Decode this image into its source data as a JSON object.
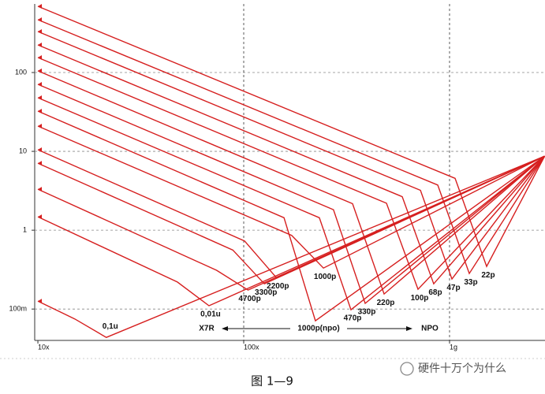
{
  "chart_data": {
    "type": "line",
    "log_x": true,
    "log_y": true,
    "grid": true,
    "color": "#d61f1f",
    "xlim": [
      9.65,
      2909
    ],
    "ylim": [
      0.04,
      741
    ],
    "xticks": [
      {
        "value": 10,
        "label": "10x"
      },
      {
        "value": 100,
        "label": "100x"
      },
      {
        "value": 1000,
        "label": "1g"
      }
    ],
    "yticks": [
      100,
      10,
      1,
      {
        "value": 0.1,
        "label": "100m"
      }
    ],
    "series": [
      {
        "name": "22p",
        "x": [
          10,
          1064,
          1514,
          2900
        ],
        "values": [
          692,
          4.55,
          0.347,
          8.7
        ]
      },
      {
        "name": "33p",
        "x": [
          10,
          876,
          1247,
          2900
        ],
        "values": [
          468,
          3.74,
          0.282,
          8.7
        ]
      },
      {
        "name": "47p",
        "x": [
          10,
          722,
          1027,
          2900
        ],
        "values": [
          331,
          3.21,
          0.24,
          8.7
        ]
      },
      {
        "name": "68p",
        "x": [
          10,
          589,
          838,
          2900
        ],
        "values": [
          224,
          2.66,
          0.209,
          8.7
        ]
      },
      {
        "name": "100p",
        "x": [
          10,
          494,
          703,
          2900
        ],
        "values": [
          155,
          2.2,
          0.178,
          8.7
        ]
      },
      {
        "name": "220p",
        "x": [
          10,
          338,
          481,
          2900
        ],
        "values": [
          105,
          2.17,
          0.155,
          8.7
        ]
      },
      {
        "name": "330p",
        "x": [
          10,
          273,
          389,
          2900
        ],
        "values": [
          70.8,
          1.82,
          0.118,
          8.7
        ]
      },
      {
        "name": "470p",
        "x": [
          10,
          233,
          332,
          2900
        ],
        "values": [
          47.9,
          1.44,
          0.098,
          8.7
        ]
      },
      {
        "name": "1000p(npo)",
        "x": [
          10,
          157,
          223,
          2900
        ],
        "values": [
          32.4,
          1.44,
          0.071,
          8.7
        ]
      },
      {
        "name": "1000p",
        "x": [
          10,
          171,
          244,
          2900
        ],
        "values": [
          20.9,
          0.86,
          0.331,
          8.7
        ]
      },
      {
        "name": "2200p",
        "x": [
          10,
          101,
          144,
          2900
        ],
        "values": [
          10.5,
          0.73,
          0.251,
          8.7
        ]
      },
      {
        "name": "3300p",
        "x": [
          10,
          88.5,
          126,
          2900
        ],
        "values": [
          7.08,
          0.56,
          0.209,
          8.7
        ]
      },
      {
        "name": "4700p",
        "x": [
          10,
          73.8,
          105,
          2900
        ],
        "values": [
          3.31,
          0.31,
          0.174,
          8.7
        ]
      },
      {
        "name": "0,01u",
        "x": [
          10,
          47.6,
          67.8,
          2900
        ],
        "values": [
          1.48,
          0.22,
          0.11,
          8.7
        ]
      },
      {
        "name": "0,1u",
        "x": [
          10,
          15.1,
          21.5,
          2900
        ],
        "values": [
          0.126,
          0.075,
          0.0437,
          8.7
        ]
      }
    ],
    "annotations": {
      "left": "X7R",
      "right": "NPO"
    },
    "caption": "图 1—9",
    "watermark": "硬件十万个为什么"
  }
}
